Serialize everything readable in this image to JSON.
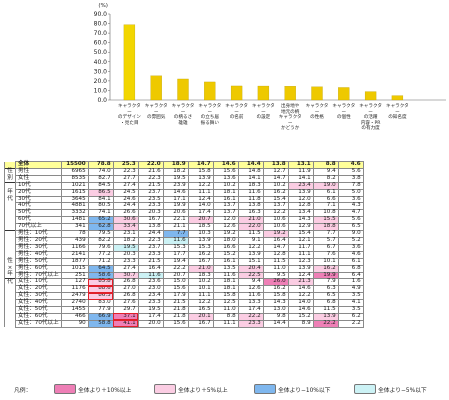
{
  "chart_data": {
    "type": "bar",
    "unit_label": "(%)",
    "ylim": [
      0,
      90
    ],
    "yticks": [
      "0.0",
      "10.0",
      "20.0",
      "30.0",
      "40.0",
      "50.0",
      "60.0",
      "70.0",
      "80.0",
      "90.0"
    ],
    "categories": [
      "キャラクター\nのデザイン\n・見た目",
      "キャラクター\nの雰囲気",
      "キャラクター\nの柄るさ\n雄雄",
      "キャラクター\nの立ち居\n振る舞い",
      "キャラクター\nの名前",
      "キャラクター\nの設定",
      "出身地や\n地元の柄\nキャラクター\nかどうか",
      "キャラクター\nの性格",
      "キャラクター\nの個性",
      "キャラクター\nの活躍\n内容・PR\nの有力度",
      "キャラクター\nの知名度"
    ],
    "values": [
      78.8,
      25.3,
      22.0,
      18.9,
      14.7,
      14.6,
      14.4,
      13.8,
      13.1,
      8.8,
      4.6
    ],
    "colors": {
      "bar": "#f2d600",
      "bar_highlight": "#eec900",
      "plus10": "#ee7fb6",
      "plus5": "#fbcde3",
      "minus10": "#7fb7ee",
      "minus5": "#ccf2f5",
      "ring": "#e0202a",
      "total": "#ffff99"
    }
  },
  "table": {
    "n_header": "n=",
    "rows": [
      {
        "g": "",
        "label": "全体",
        "n": "15500",
        "v": [
          "78.8",
          "25.3",
          "22.0",
          "18.9",
          "14.7",
          "14.6",
          "14.4",
          "13.8",
          "13.1",
          "8.8",
          "4.6"
        ],
        "h": [
          "",
          "",
          "",
          "",
          "",
          "",
          "",
          "",
          "",
          "",
          ""
        ],
        "total": true
      },
      {
        "g": "性",
        "label": "男性",
        "n": "6965",
        "v": [
          "74.0",
          "22.3",
          "21.6",
          "18.2",
          "15.8",
          "15.6",
          "14.8",
          "12.7",
          "11.9",
          "9.4",
          "5.6"
        ],
        "h": [
          "",
          "",
          "",
          "",
          "",
          "",
          "",
          "",
          "",
          "",
          ""
        ],
        "sep": true
      },
      {
        "g": "別",
        "label": "女性",
        "n": "8535",
        "v": [
          "82.7",
          "27.7",
          "22.3",
          "19.5",
          "13.9",
          "13.6",
          "14.1",
          "14.7",
          "14.1",
          "8.2",
          "3.8"
        ],
        "h": [
          "",
          "",
          "",
          "",
          "",
          "",
          "",
          "",
          "",
          "",
          ""
        ]
      },
      {
        "g": "",
        "label": "10代",
        "n": "1021",
        "v": [
          "84.5",
          "27.4",
          "21.5",
          "23.9",
          "12.2",
          "10.2",
          "18.3",
          "10.2",
          "23.4",
          "19.0",
          "7.8"
        ],
        "h": [
          "",
          "",
          "",
          "",
          "",
          "",
          "",
          "",
          "hp5",
          "hp5",
          ""
        ],
        "sep": true
      },
      {
        "g": "年",
        "label": "20代",
        "n": "1615",
        "v": [
          "86.5",
          "24.5",
          "23.7",
          "14.6",
          "11.1",
          "18.1",
          "11.6",
          "16.2",
          "13.9",
          "6.1",
          "5.0"
        ],
        "h": [
          "hp5",
          "",
          "",
          "",
          "",
          "",
          "",
          "",
          "",
          "",
          ""
        ]
      },
      {
        "g": "代",
        "label": "30代",
        "n": "3645",
        "v": [
          "84.1",
          "24.6",
          "23.5",
          "17.1",
          "12.4",
          "16.1",
          "11.8",
          "15.4",
          "12.0",
          "6.6",
          "3.6"
        ],
        "h": [
          "",
          "",
          "",
          "",
          "",
          "",
          "",
          "",
          "",
          "",
          ""
        ]
      },
      {
        "g": "",
        "label": "40代",
        "n": "4881",
        "v": [
          "80.5",
          "24.4",
          "23.3",
          "19.9",
          "14.0",
          "13.7",
          "13.8",
          "13.7",
          "12.8",
          "7.1",
          "4.3"
        ],
        "h": [
          "",
          "",
          "",
          "",
          "",
          "",
          "",
          "",
          "",
          "",
          ""
        ]
      },
      {
        "g": "",
        "label": "50代",
        "n": "3332",
        "v": [
          "74.1",
          "26.6",
          "20.3",
          "20.6",
          "17.4",
          "13.7",
          "16.3",
          "12.2",
          "13.4",
          "10.8",
          "4.7"
        ],
        "h": [
          "",
          "",
          "",
          "",
          "",
          "",
          "",
          "",
          "",
          "",
          ""
        ]
      },
      {
        "g": "",
        "label": "60代",
        "n": "1481",
        "v": [
          "65.2",
          "30.6",
          "16.7",
          "22.1",
          "20.7",
          "12.0",
          "21.0",
          "10.6",
          "14.3",
          "15.5",
          "5.6"
        ],
        "h": [
          "hm10",
          "hp5",
          "",
          "",
          "hp5",
          "",
          "hp5",
          "",
          "",
          "hp5",
          ""
        ]
      },
      {
        "g": "",
        "label": "70代以上",
        "n": "341",
        "v": [
          "62.8",
          "33.4",
          "13.8",
          "21.1",
          "18.5",
          "12.6",
          "22.0",
          "10.6",
          "12.9",
          "18.8",
          "6.5"
        ],
        "h": [
          "hm10",
          "hp5",
          "",
          "",
          "",
          "",
          "hp5",
          "",
          "",
          "hp5",
          ""
        ]
      },
      {
        "g": "",
        "label": "男性：10代",
        "n": "78",
        "v": [
          "79.5",
          "23.1",
          "24.4",
          "7.7",
          "10.3",
          "19.2",
          "11.5",
          "19.2",
          "15.4",
          "7.7",
          "9.0"
        ],
        "h": [
          "",
          "",
          "",
          "hm10",
          "",
          "",
          "",
          "hp5",
          "",
          "",
          ""
        ],
        "sep": true
      },
      {
        "g": "",
        "label": "男性：20代",
        "n": "439",
        "v": [
          "82.2",
          "18.2",
          "22.3",
          "11.6",
          "13.9",
          "18.0",
          "9.1",
          "16.4",
          "12.1",
          "5.7",
          "5.2"
        ],
        "h": [
          "",
          "",
          "",
          "hm5",
          "",
          "",
          "",
          "",
          "",
          "",
          ""
        ]
      },
      {
        "g": "",
        "label": "男性：30代",
        "n": "1166",
        "v": [
          "79.6",
          "19.5",
          "23.7",
          "15.3",
          "15.3",
          "16.6",
          "12.2",
          "14.7",
          "11.7",
          "6.7",
          "3.6"
        ],
        "h": [
          "",
          "hm5",
          "",
          "",
          "",
          "",
          "",
          "",
          "",
          "",
          ""
        ]
      },
      {
        "g": "",
        "label": "男性：40代",
        "n": "2141",
        "v": [
          "77.2",
          "20.3",
          "23.3",
          "17.7",
          "16.2",
          "15.2",
          "13.9",
          "12.8",
          "11.1",
          "7.6",
          "4.6"
        ],
        "h": [
          "",
          "",
          "",
          "",
          "",
          "",
          "",
          "",
          "",
          "",
          ""
        ]
      },
      {
        "g": "性",
        "label": "男性：50代",
        "n": "1877",
        "v": [
          "71.2",
          "23.3",
          "21.5",
          "19.4",
          "16.7",
          "16.1",
          "15.1",
          "11.5",
          "12.3",
          "10.1",
          "6.1"
        ],
        "h": [
          "",
          "",
          "",
          "",
          "",
          "",
          "",
          "",
          "",
          "",
          ""
        ]
      },
      {
        "g": "×",
        "label": "男性：60代",
        "n": "1015",
        "v": [
          "64.5",
          "27.4",
          "16.4",
          "22.2",
          "21.0",
          "13.5",
          "20.4",
          "11.0",
          "13.9",
          "16.2",
          "6.8"
        ],
        "h": [
          "hm10",
          "",
          "",
          "",
          "hp5",
          "",
          "hp5",
          "",
          "",
          "hp5",
          ""
        ]
      },
      {
        "g": "年",
        "label": "男性：70代以上",
        "n": "251",
        "v": [
          "58.6",
          "30.7",
          "11.6",
          "20.7",
          "18.3",
          "11.6",
          "22.5",
          "9.5",
          "12.4",
          "19.9",
          "6.4"
        ],
        "h": [
          "hm10",
          "hp5",
          "hm5",
          "",
          "",
          "",
          "hp5",
          "",
          "",
          "hp10",
          ""
        ]
      },
      {
        "g": "代",
        "label": "女性：10代",
        "n": "127",
        "v": [
          "85.8",
          "26.8",
          "23.6",
          "15.0",
          "10.2",
          "18.1",
          "9.4",
          "26.0",
          "21.3",
          "7.9",
          "1.6"
        ],
        "h": [
          "hp5",
          "",
          "",
          "",
          "",
          "",
          "",
          "hp10",
          "hp5",
          "",
          ""
        ],
        "sep": true
      },
      {
        "g": "",
        "label": "女性：20代",
        "n": "1176",
        "v": [
          "88.6",
          "27.0",
          "23.0",
          "15.6",
          "10.1",
          "18.1",
          "12.6",
          "16.2",
          "14.6",
          "6.3",
          "4.9"
        ],
        "h": [
          "hp5",
          "",
          "",
          "",
          "",
          "",
          "",
          "",
          "",
          "",
          ""
        ]
      },
      {
        "g": "",
        "label": "女性：30代",
        "n": "2479",
        "v": [
          "86.3",
          "26.8",
          "23.4",
          "17.9",
          "11.1",
          "15.8",
          "11.6",
          "15.8",
          "12.2",
          "6.5",
          "3.5"
        ],
        "h": [
          "hp5",
          "",
          "",
          "",
          "",
          "",
          "",
          "",
          "",
          "",
          ""
        ]
      },
      {
        "g": "",
        "label": "女性：40代",
        "n": "2740",
        "v": [
          "83.0",
          "27.6",
          "23.3",
          "21.5",
          "12.2",
          "12.5",
          "13.3",
          "14.3",
          "14.0",
          "6.8",
          "4.1"
        ],
        "h": [
          "",
          "",
          "",
          "",
          "",
          "",
          "",
          "",
          "",
          "",
          ""
        ]
      },
      {
        "g": "",
        "label": "女性：50代",
        "n": "1455",
        "v": [
          "77.9",
          "29.7",
          "19.5",
          "21.8",
          "16.5",
          "11.0",
          "17.4",
          "13.0",
          "14.6",
          "11.5",
          "3.5"
        ],
        "h": [
          "",
          "",
          "",
          "",
          "",
          "",
          "",
          "",
          "",
          "",
          ""
        ]
      },
      {
        "g": "",
        "label": "女性：60代",
        "n": "466",
        "v": [
          "66.9",
          "37.1",
          "17.4",
          "21.8",
          "20.1",
          "8.8",
          "22.2",
          "9.8",
          "15.2",
          "13.9",
          "6.2"
        ],
        "h": [
          "hm10",
          "hp10",
          "",
          "",
          "hp5",
          "",
          "hp5",
          "",
          "",
          "hp5",
          ""
        ]
      },
      {
        "g": "",
        "label": "女性：70代以上",
        "n": "90",
        "v": [
          "58.8",
          "41.1",
          "20.0",
          "15.6",
          "16.7",
          "11.1",
          "23.3",
          "14.4",
          "8.9",
          "22.2",
          "2.2"
        ],
        "h": [
          "hm10",
          "hp10",
          "",
          "",
          "",
          "",
          "hp5",
          "",
          "",
          "hp10",
          ""
        ]
      }
    ]
  },
  "legend": {
    "title": "凡例：",
    "items": [
      {
        "key": "plus10",
        "label": "全体より＋10%以上"
      },
      {
        "key": "plus5",
        "label": "全体より＋5%以上"
      },
      {
        "key": "minus10",
        "label": "全体より−10%以下"
      },
      {
        "key": "minus5",
        "label": "全体より−5%以下"
      }
    ]
  }
}
